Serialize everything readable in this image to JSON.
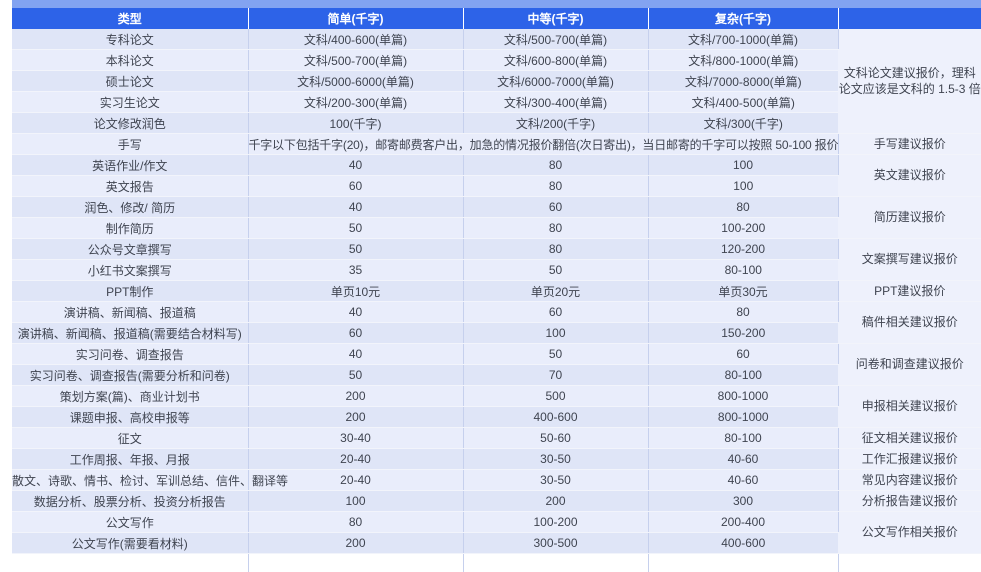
{
  "theme": {
    "header_bg": "#2d63e8",
    "header_text": "#ffffff",
    "top_strip": "#82a3f1",
    "row_dark": "#dfe5f7",
    "row_light": "#e9edfb",
    "note_bg": "#eef1fc",
    "grid_line": "#c6d0ed",
    "body_text": "#3f4450"
  },
  "table": {
    "columns": [
      "类型",
      "简单(千字)",
      "中等(千字)",
      "复杂(千字)",
      ""
    ],
    "rows": [
      {
        "label": "专科论文",
        "values": [
          "文科/400-600(单篇)",
          "文科/500-700(单篇)",
          "文科/700-1000(单篇)"
        ],
        "note": {
          "text": "文科论文建议报价，理科论文应该是文科的 1.5-3 倍",
          "span": 5
        }
      },
      {
        "label": "本科论文",
        "values": [
          "文科/500-700(单篇)",
          "文科/600-800(单篇)",
          "文科/800-1000(单篇)"
        ]
      },
      {
        "label": "硕士论文",
        "values": [
          "文科/5000-6000(单篇)",
          "文科/6000-7000(单篇)",
          "文科/7000-8000(单篇)"
        ]
      },
      {
        "label": "实习生论文",
        "values": [
          "文科/200-300(单篇)",
          "文科/300-400(单篇)",
          "文科/400-500(单篇)"
        ]
      },
      {
        "label": "论文修改润色",
        "values": [
          "100(千字)",
          "文科/200(千字)",
          "文科/300(千字)"
        ]
      },
      {
        "label": "手写",
        "merged": "千字以下包括千字(20)，邮寄邮费客户出，加急的情况报价翻倍(次日寄出)，当日邮寄的千字可以按照 50-100 报价",
        "note": {
          "text": "手写建议报价",
          "span": 1
        }
      },
      {
        "label": "英语作业/作文",
        "values": [
          "40",
          "80",
          "100"
        ],
        "note": {
          "text": "英文建议报价",
          "span": 2
        }
      },
      {
        "label": "英文报告",
        "values": [
          "60",
          "80",
          "100"
        ]
      },
      {
        "label": "润色、修改/ 简历",
        "values": [
          "40",
          "60",
          "80"
        ],
        "note": {
          "text": "简历建议报价",
          "span": 2
        }
      },
      {
        "label": "制作简历",
        "values": [
          "50",
          "80",
          "100-200"
        ]
      },
      {
        "label": "公众号文章撰写",
        "values": [
          "50",
          "80",
          "120-200"
        ],
        "note": {
          "text": "文案撰写建议报价",
          "span": 2
        }
      },
      {
        "label": "小红书文案撰写",
        "values": [
          "35",
          "50",
          "80-100"
        ]
      },
      {
        "label": "PPT制作",
        "values": [
          "单页10元",
          "单页20元",
          "单页30元"
        ],
        "note": {
          "text": "PPT建议报价",
          "span": 1
        }
      },
      {
        "label": "演讲稿、新闻稿、报道稿",
        "values": [
          "40",
          "60",
          "80"
        ],
        "note": {
          "text": "稿件相关建议报价",
          "span": 2
        }
      },
      {
        "label": "演讲稿、新闻稿、报道稿(需要结合材料写)",
        "values": [
          "60",
          "100",
          "150-200"
        ]
      },
      {
        "label": "实习问卷、调查报告",
        "values": [
          "40",
          "50",
          "60"
        ],
        "note": {
          "text": "问卷和调查建议报价",
          "span": 2
        }
      },
      {
        "label": "实习问卷、调查报告(需要分析和问卷)",
        "values": [
          "50",
          "70",
          "80-100"
        ]
      },
      {
        "label": "策划方案(篇)、商业计划书",
        "values": [
          "200",
          "500",
          "800-1000"
        ],
        "note": {
          "text": "申报相关建议报价",
          "span": 2
        }
      },
      {
        "label": "课题申报、高校申报等",
        "values": [
          "200",
          "400-600",
          "800-1000"
        ]
      },
      {
        "label": "征文",
        "values": [
          "30-40",
          "50-60",
          "80-100"
        ],
        "note": {
          "text": "征文相关建议报价",
          "span": 1
        }
      },
      {
        "label": "工作周报、年报、月报",
        "values": [
          "20-40",
          "30-50",
          "40-60"
        ],
        "note": {
          "text": "工作汇报建议报价",
          "span": 1
        }
      },
      {
        "label": "散文、诗歌、情书、检讨、军训总结、信件、翻译等",
        "values": [
          "20-40",
          "30-50",
          "40-60"
        ],
        "note": {
          "text": "常见内容建议报价",
          "span": 1
        }
      },
      {
        "label": "数据分析、股票分析、投资分析报告",
        "values": [
          "100",
          "200",
          "300"
        ],
        "note": {
          "text": "分析报告建议报价",
          "span": 1
        }
      },
      {
        "label": "公文写作",
        "values": [
          "80",
          "100-200",
          "200-400"
        ],
        "note": {
          "text": "公文写作相关报价",
          "span": 2
        }
      },
      {
        "label": "公文写作(需要看材料)",
        "values": [
          "200",
          "300-500",
          "400-600"
        ]
      }
    ]
  }
}
